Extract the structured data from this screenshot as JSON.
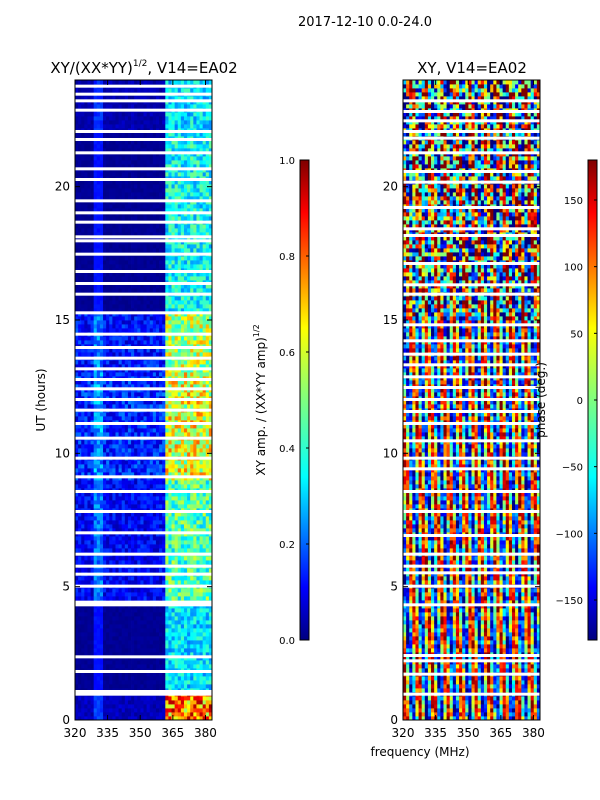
{
  "suptitle": "2017-12-10 0.0-24.0",
  "colormap": [
    "#00007f",
    "#0000ff",
    "#007fff",
    "#00ffff",
    "#7fff7f",
    "#ffff00",
    "#ff7f00",
    "#ff0000",
    "#7f0000"
  ],
  "chart_data": [
    {
      "type": "heatmap",
      "id": "left",
      "title_parts": [
        "XY/(XX*YY)",
        "1/2",
        ", V14=EA02"
      ],
      "xlabel": "",
      "ylabel": "UT (hours)",
      "xlim": [
        320,
        383
      ],
      "ylim": [
        0,
        24
      ],
      "xticks": [
        320,
        335,
        350,
        365,
        380
      ],
      "yticks": [
        0,
        5,
        10,
        15,
        20
      ],
      "gap_hours": [
        0.95,
        1.05,
        1.8,
        2.35,
        4.3,
        4.4,
        5.0,
        5.45,
        5.75,
        6.2,
        7.0,
        7.8,
        8.55,
        9.1,
        9.8,
        10.55,
        11.1,
        11.6,
        12.0,
        12.4,
        12.75,
        13.15,
        13.55,
        13.95,
        14.45,
        15.25,
        15.95,
        16.35,
        16.8,
        17.45,
        17.95,
        18.1,
        18.65,
        19.0,
        19.45,
        20.25,
        20.65,
        21.25,
        21.75,
        22.05,
        22.85,
        23.2,
        23.45,
        23.75
      ],
      "bands": [
        {
          "from": 0.0,
          "to": 1.0,
          "base": 0.06,
          "strong": 0.75
        },
        {
          "from": 1.0,
          "to": 4.3,
          "base": 0.02,
          "strong": 0.35
        },
        {
          "from": 4.3,
          "to": 9.0,
          "base": 0.12,
          "strong": 0.45
        },
        {
          "from": 9.0,
          "to": 13.0,
          "base": 0.16,
          "strong": 0.6
        },
        {
          "from": 13.0,
          "to": 15.3,
          "base": 0.14,
          "strong": 0.55
        },
        {
          "from": 15.3,
          "to": 22.0,
          "base": 0.02,
          "strong": 0.38
        },
        {
          "from": 22.0,
          "to": 24.0,
          "base": 0.05,
          "strong": 0.35
        }
      ],
      "strong_channel_from_mhz": 361,
      "colorbar": {
        "label_parts": [
          "XY amp. / (XX*YY amp)",
          "1/2"
        ],
        "range": [
          0.0,
          1.0
        ],
        "ticks": [
          "0.0",
          "0.2",
          "0.4",
          "0.6",
          "0.8",
          "1.0"
        ]
      }
    },
    {
      "type": "heatmap",
      "id": "right",
      "title_parts": [
        "XY, V14=EA02"
      ],
      "xlabel": "frequency (MHz)",
      "ylabel": "",
      "xlim": [
        320,
        383
      ],
      "ylim": [
        0,
        24
      ],
      "xticks": [
        320,
        335,
        350,
        365,
        380
      ],
      "yticks": [
        0,
        5,
        10,
        15,
        20
      ],
      "gap_hours": [
        0.95,
        1.7,
        2.2,
        2.4,
        4.3,
        5.0,
        5.5,
        5.75,
        6.2,
        6.9,
        7.8,
        8.55,
        9.4,
        9.8,
        10.45,
        11.1,
        11.55,
        12.0,
        12.45,
        12.85,
        13.3,
        13.7,
        14.2,
        14.8,
        15.95,
        16.3,
        17.1,
        18.15,
        18.4,
        19.2,
        20.15,
        20.55,
        21.25,
        21.8,
        22.05,
        22.45,
        22.8,
        23.2
      ],
      "stripe_period_mhz": 6.5,
      "colorbar": {
        "label_parts": [
          "phase (deg.)"
        ],
        "range": [
          -180,
          180
        ],
        "ticks": [
          "−150",
          "−100",
          "−50",
          "0",
          "50",
          "100",
          "150"
        ],
        "tick_values": [
          -150,
          -100,
          -50,
          0,
          50,
          100,
          150
        ]
      }
    }
  ]
}
